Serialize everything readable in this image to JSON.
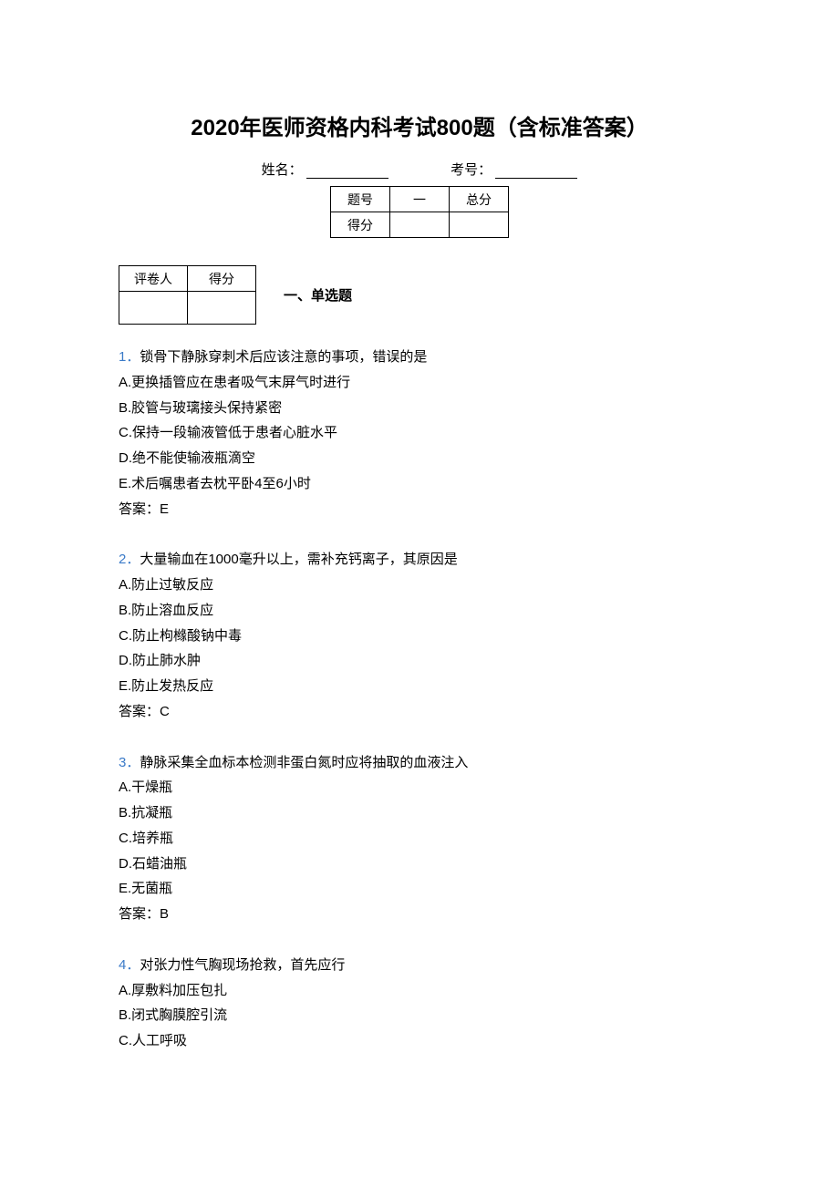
{
  "title": "2020年医师资格内科考试800题（含标准答案）",
  "header": {
    "name_label": "姓名：",
    "id_label": "考号："
  },
  "scoreTable": {
    "r1c1": "题号",
    "r1c2": "一",
    "r1c3": "总分",
    "r2c1": "得分"
  },
  "graderTable": {
    "c1": "评卷人",
    "c2": "得分"
  },
  "sectionTitle": "一、单选题",
  "questions": [
    {
      "num": "1．",
      "stem": "锁骨下静脉穿刺术后应该注意的事项，错误的是",
      "options": [
        "A.更换插管应在患者吸气末屏气时进行",
        "B.胶管与玻璃接头保持紧密",
        "C.保持一段输液管低于患者心脏水平",
        "D.绝不能使输液瓶滴空",
        "E.术后嘱患者去枕平卧4至6小时"
      ],
      "answer": "答案：E"
    },
    {
      "num": "2．",
      "stem": "大量输血在1000毫升以上，需补充钙离子，其原因是",
      "options": [
        "A.防止过敏反应",
        "B.防止溶血反应",
        "C.防止枸橼酸钠中毒",
        "D.防止肺水肿",
        "E.防止发热反应"
      ],
      "answer": "答案：C"
    },
    {
      "num": "3．",
      "stem": "静脉采集全血标本检测非蛋白氮时应将抽取的血液注入",
      "options": [
        "A.干燥瓶",
        "B.抗凝瓶",
        "C.培养瓶",
        "D.石蜡油瓶",
        "E.无菌瓶"
      ],
      "answer": "答案：B"
    },
    {
      "num": "4．",
      "stem": "对张力性气胸现场抢救，首先应行",
      "options": [
        "A.厚敷料加压包扎",
        "B.闭式胸膜腔引流",
        "C.人工呼吸"
      ],
      "answer": ""
    }
  ],
  "colors": {
    "questionNum": "#3a7ac8",
    "text": "#000000",
    "background": "#ffffff"
  }
}
